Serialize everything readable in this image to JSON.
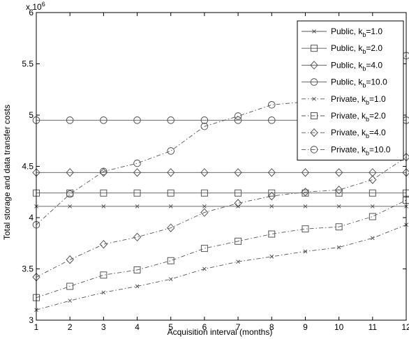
{
  "chart_data": {
    "type": "line",
    "title": "",
    "xlabel": "Acquisition interval (months)",
    "ylabel": "Total storage and data transfer costs",
    "y_exponent_label": "x 10",
    "y_exponent_power": "6",
    "x": [
      1,
      2,
      3,
      4,
      5,
      6,
      7,
      8,
      9,
      10,
      11,
      12
    ],
    "xlim": [
      1,
      12
    ],
    "ylim": [
      3000000,
      6000000
    ],
    "x_ticks": [
      "1",
      "2",
      "3",
      "4",
      "5",
      "6",
      "7",
      "8",
      "9",
      "10",
      "11",
      "12"
    ],
    "y_ticks": [
      {
        "value": 3000000,
        "label": "3"
      },
      {
        "value": 3500000,
        "label": "3.5"
      },
      {
        "value": 4000000,
        "label": "4"
      },
      {
        "value": 4500000,
        "label": "4.5"
      },
      {
        "value": 5000000,
        "label": "5"
      },
      {
        "value": 5500000,
        "label": "5.5"
      },
      {
        "value": 6000000,
        "label": "6"
      }
    ],
    "grid": false,
    "legend_position": "top-right",
    "series": [
      {
        "name": "Public, k",
        "sub": "b",
        "suffix": "=1.0",
        "marker": "x",
        "dash": "solid",
        "values": [
          4110000,
          4110000,
          4110000,
          4110000,
          4110000,
          4110000,
          4110000,
          4110000,
          4110000,
          4110000,
          4110000,
          4110000
        ]
      },
      {
        "name": "Public, k",
        "sub": "b",
        "suffix": "=2.0",
        "marker": "square",
        "dash": "solid",
        "values": [
          4240000,
          4240000,
          4240000,
          4240000,
          4240000,
          4240000,
          4240000,
          4240000,
          4240000,
          4240000,
          4240000,
          4240000
        ]
      },
      {
        "name": "Public, k",
        "sub": "b",
        "suffix": "=4.0",
        "marker": "diamond",
        "dash": "solid",
        "values": [
          4440000,
          4440000,
          4440000,
          4440000,
          4440000,
          4440000,
          4440000,
          4440000,
          4440000,
          4440000,
          4440000,
          4440000
        ]
      },
      {
        "name": "Public, k",
        "sub": "b",
        "suffix": "=10.0",
        "marker": "circle",
        "dash": "solid",
        "values": [
          4950000,
          4950000,
          4950000,
          4950000,
          4950000,
          4950000,
          4950000,
          4950000,
          4950000,
          4950000,
          4950000,
          4950000
        ]
      },
      {
        "name": "Private, k",
        "sub": "b",
        "suffix": "=1.0",
        "marker": "x",
        "dash": "dashdot",
        "values": [
          3100000,
          3190000,
          3270000,
          3330000,
          3400000,
          3500000,
          3570000,
          3620000,
          3670000,
          3710000,
          3800000,
          3930000
        ]
      },
      {
        "name": "Private, k",
        "sub": "b",
        "suffix": "=2.0",
        "marker": "square",
        "dash": "dashdot",
        "values": [
          3220000,
          3330000,
          3440000,
          3490000,
          3580000,
          3700000,
          3770000,
          3840000,
          3890000,
          3910000,
          4010000,
          4170000
        ]
      },
      {
        "name": "Private, k",
        "sub": "b",
        "suffix": "=4.0",
        "marker": "diamond",
        "dash": "dashdot",
        "values": [
          3420000,
          3590000,
          3740000,
          3810000,
          3900000,
          4050000,
          4140000,
          4210000,
          4250000,
          4270000,
          4370000,
          4590000
        ]
      },
      {
        "name": "Private, k",
        "sub": "b",
        "suffix": "=10.0",
        "marker": "circle",
        "dash": "dashdot",
        "values": [
          3930000,
          4230000,
          4450000,
          4530000,
          4650000,
          4890000,
          4990000,
          5100000,
          5130000,
          5200000,
          5310000,
          5580000
        ]
      }
    ]
  }
}
